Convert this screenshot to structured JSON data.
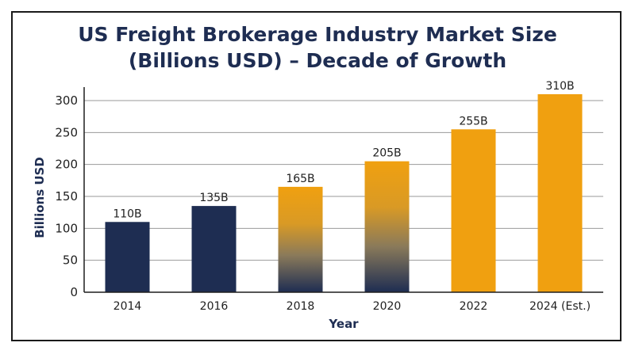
{
  "chart_data": {
    "type": "bar",
    "title_line1": "US Freight Brokerage Industry Market Size",
    "title_line2": "(Billions USD) – Decade of Growth",
    "xlabel": "Year",
    "ylabel": "Billions USD",
    "categories": [
      "2014",
      "2016",
      "2018",
      "2020",
      "2022",
      "2024 (Est.)"
    ],
    "values": [
      110,
      135,
      165,
      205,
      255,
      310
    ],
    "data_labels": [
      "110B",
      "135B",
      "165B",
      "205B",
      "255B",
      "310B"
    ],
    "yticks": [
      0,
      50,
      100,
      150,
      200,
      250,
      300
    ],
    "ylim": [
      0,
      300
    ],
    "grid": true,
    "bar_styles": [
      "navy",
      "navy",
      "gradient",
      "gradient",
      "gold",
      "gold"
    ],
    "colors": {
      "navy": "#1e2d52",
      "gold": "#f0a010",
      "title": "#1e2d52",
      "grid": "#9a9a9a"
    }
  }
}
